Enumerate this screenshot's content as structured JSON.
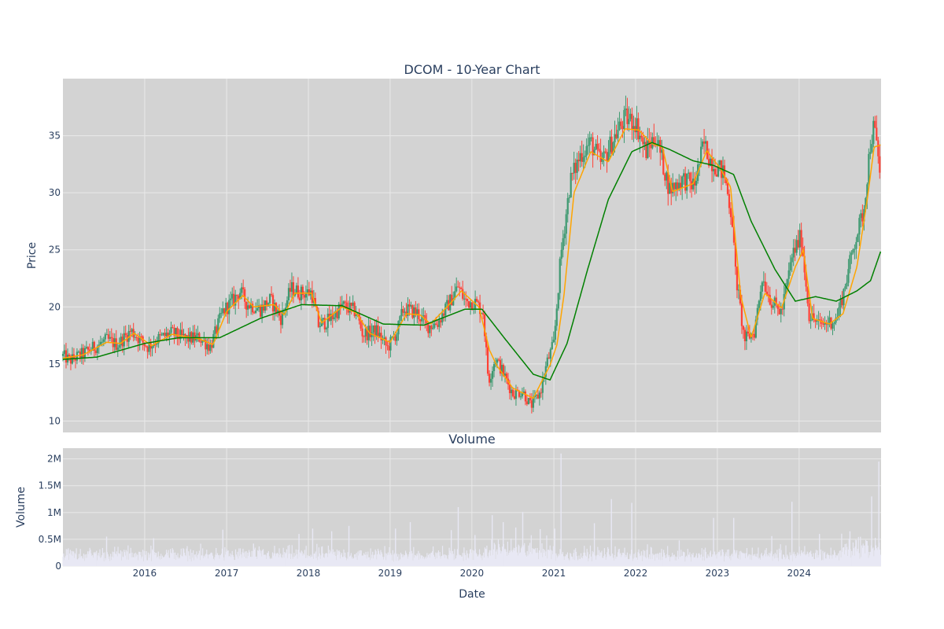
{
  "chart_data": [
    {
      "type": "candlestick",
      "title": "DCOM - 10-Year Chart",
      "ylabel": "Price",
      "ylim": [
        9,
        40
      ],
      "y_ticks": [
        "10",
        "15",
        "20",
        "25",
        "30",
        "35"
      ],
      "x_ticks": [
        "2016",
        "2017",
        "2018",
        "2019",
        "2020",
        "2021",
        "2022",
        "2023",
        "2024"
      ],
      "x_range": [
        "2015-01-01",
        "2025-01-01"
      ],
      "grid": true,
      "colors": {
        "increasing": "#3d9970",
        "decreasing": "#ff4136",
        "short_ma": "#ffa500",
        "long_ma": "#008000",
        "plot_bg": "#d3d3d3"
      },
      "price_path": [
        [
          "2015-01-01",
          15.7
        ],
        [
          "2015-02-01",
          15.3
        ],
        [
          "2015-04-01",
          15.9
        ],
        [
          "2015-06-01",
          16.6
        ],
        [
          "2015-07-15",
          17.1
        ],
        [
          "2015-09-01",
          16.7
        ],
        [
          "2015-11-01",
          17.9
        ],
        [
          "2016-01-15",
          16.5
        ],
        [
          "2016-03-01",
          17.2
        ],
        [
          "2016-05-01",
          17.7
        ],
        [
          "2016-07-01",
          17.2
        ],
        [
          "2016-09-01",
          17.3
        ],
        [
          "2016-10-20",
          16.5
        ],
        [
          "2016-12-15",
          19.6
        ],
        [
          "2017-02-01",
          20.6
        ],
        [
          "2017-03-01",
          21.4
        ],
        [
          "2017-04-01",
          20.3
        ],
        [
          "2017-06-01",
          19.8
        ],
        [
          "2017-07-15",
          20.6
        ],
        [
          "2017-09-01",
          19.0
        ],
        [
          "2017-10-15",
          21.6
        ],
        [
          "2017-12-01",
          21.2
        ],
        [
          "2018-01-15",
          21.3
        ],
        [
          "2018-02-15",
          18.4
        ],
        [
          "2018-04-01",
          18.8
        ],
        [
          "2018-06-01",
          20.1
        ],
        [
          "2018-08-01",
          19.6
        ],
        [
          "2018-09-01",
          17.6
        ],
        [
          "2018-11-01",
          17.9
        ],
        [
          "2018-12-20",
          16.4
        ],
        [
          "2019-02-01",
          17.8
        ],
        [
          "2019-03-01",
          19.8
        ],
        [
          "2019-05-01",
          19.5
        ],
        [
          "2019-06-15",
          18.3
        ],
        [
          "2019-08-01",
          18.6
        ],
        [
          "2019-09-15",
          20.1
        ],
        [
          "2019-11-01",
          21.8
        ],
        [
          "2019-12-01",
          20.5
        ],
        [
          "2020-01-15",
          20.4
        ],
        [
          "2020-02-20",
          19.6
        ],
        [
          "2020-03-15",
          13.5
        ],
        [
          "2020-04-15",
          15.5
        ],
        [
          "2020-05-20",
          14.2
        ],
        [
          "2020-07-01",
          12.4
        ],
        [
          "2020-08-15",
          12.6
        ],
        [
          "2020-09-20",
          11.3
        ],
        [
          "2020-11-01",
          12.5
        ],
        [
          "2020-12-01",
          15.1
        ],
        [
          "2021-01-01",
          16.8
        ],
        [
          "2021-02-01",
          24.5
        ],
        [
          "2021-03-15",
          31.0
        ],
        [
          "2021-05-01",
          33.4
        ],
        [
          "2021-06-15",
          34.4
        ],
        [
          "2021-08-01",
          32.5
        ],
        [
          "2021-10-01",
          35.0
        ],
        [
          "2021-11-15",
          36.5
        ],
        [
          "2022-01-01",
          36.2
        ],
        [
          "2022-02-15",
          33.6
        ],
        [
          "2022-04-01",
          35.0
        ],
        [
          "2022-06-01",
          30.3
        ],
        [
          "2022-08-01",
          31.2
        ],
        [
          "2022-09-20",
          30.6
        ],
        [
          "2022-11-01",
          34.3
        ],
        [
          "2022-12-01",
          32.9
        ],
        [
          "2023-02-01",
          31.6
        ],
        [
          "2023-03-10",
          27.5
        ],
        [
          "2023-03-20",
          23.5
        ],
        [
          "2023-05-01",
          17.1
        ],
        [
          "2023-06-15",
          17.8
        ],
        [
          "2023-07-20",
          22.6
        ],
        [
          "2023-09-01",
          20.4
        ],
        [
          "2023-10-15",
          19.5
        ],
        [
          "2023-12-01",
          24.5
        ],
        [
          "2024-01-10",
          26.2
        ],
        [
          "2024-02-15",
          19.3
        ],
        [
          "2024-04-01",
          18.4
        ],
        [
          "2024-06-15",
          18.9
        ],
        [
          "2024-07-20",
          21.5
        ],
        [
          "2024-09-01",
          25.4
        ],
        [
          "2024-10-15",
          28.4
        ],
        [
          "2024-11-15",
          34.5
        ],
        [
          "2024-12-01",
          35.8
        ],
        [
          "2024-12-31",
          31.2
        ]
      ],
      "short_ma": [
        [
          "2015-01-01",
          15.5
        ],
        [
          "2015-04-01",
          15.8
        ],
        [
          "2015-07-15",
          16.9
        ],
        [
          "2015-09-15",
          16.8
        ],
        [
          "2015-11-15",
          17.7
        ],
        [
          "2016-02-01",
          16.6
        ],
        [
          "2016-05-01",
          17.6
        ],
        [
          "2016-09-01",
          17.2
        ],
        [
          "2016-11-01",
          16.7
        ],
        [
          "2017-01-01",
          19.6
        ],
        [
          "2017-03-15",
          21.0
        ],
        [
          "2017-05-01",
          20.0
        ],
        [
          "2017-08-01",
          20.2
        ],
        [
          "2017-09-15",
          19.3
        ],
        [
          "2017-11-01",
          21.2
        ],
        [
          "2018-01-15",
          21.2
        ],
        [
          "2018-03-01",
          18.6
        ],
        [
          "2018-06-01",
          20.0
        ],
        [
          "2018-08-01",
          19.5
        ],
        [
          "2018-10-01",
          17.7
        ],
        [
          "2019-01-01",
          16.9
        ],
        [
          "2019-03-15",
          19.4
        ],
        [
          "2019-05-15",
          19.3
        ],
        [
          "2019-07-01",
          18.5
        ],
        [
          "2019-10-01",
          20.4
        ],
        [
          "2019-11-15",
          21.4
        ],
        [
          "2020-02-01",
          20.0
        ],
        [
          "2020-03-20",
          16.2
        ],
        [
          "2020-04-20",
          14.9
        ],
        [
          "2020-07-01",
          12.9
        ],
        [
          "2020-10-01",
          12.0
        ],
        [
          "2020-12-15",
          14.9
        ],
        [
          "2021-01-15",
          16.7
        ],
        [
          "2021-02-15",
          21.0
        ],
        [
          "2021-04-01",
          30.0
        ],
        [
          "2021-06-15",
          33.6
        ],
        [
          "2021-09-01",
          32.7
        ],
        [
          "2021-11-15",
          35.6
        ],
        [
          "2022-01-15",
          35.5
        ],
        [
          "2022-03-15",
          34.3
        ],
        [
          "2022-05-01",
          34.0
        ],
        [
          "2022-06-15",
          30.1
        ],
        [
          "2022-09-15",
          30.8
        ],
        [
          "2022-11-15",
          33.7
        ],
        [
          "2023-01-15",
          32.1
        ],
        [
          "2023-03-01",
          30.5
        ],
        [
          "2023-04-15",
          21.0
        ],
        [
          "2023-06-01",
          17.3
        ],
        [
          "2023-08-01",
          21.2
        ],
        [
          "2023-10-15",
          19.9
        ],
        [
          "2023-12-15",
          23.5
        ],
        [
          "2024-01-20",
          25.0
        ],
        [
          "2024-03-01",
          19.0
        ],
        [
          "2024-05-15",
          18.5
        ],
        [
          "2024-07-15",
          19.4
        ],
        [
          "2024-09-15",
          23.5
        ],
        [
          "2024-11-01",
          29.5
        ],
        [
          "2024-12-01",
          34.0
        ],
        [
          "2024-12-31",
          34.2
        ]
      ],
      "long_ma": [
        [
          "2015-01-01",
          15.4
        ],
        [
          "2015-06-01",
          15.6
        ],
        [
          "2016-01-01",
          16.8
        ],
        [
          "2016-06-01",
          17.3
        ],
        [
          "2016-12-01",
          17.3
        ],
        [
          "2017-06-01",
          19.0
        ],
        [
          "2017-12-01",
          20.2
        ],
        [
          "2018-06-01",
          20.1
        ],
        [
          "2018-12-01",
          18.5
        ],
        [
          "2019-06-01",
          18.4
        ],
        [
          "2019-12-01",
          19.8
        ],
        [
          "2020-02-15",
          19.8
        ],
        [
          "2020-06-01",
          17.1
        ],
        [
          "2020-10-01",
          14.1
        ],
        [
          "2020-12-15",
          13.6
        ],
        [
          "2021-03-01",
          16.8
        ],
        [
          "2021-06-01",
          23.3
        ],
        [
          "2021-09-01",
          29.4
        ],
        [
          "2021-12-15",
          33.6
        ],
        [
          "2022-03-15",
          34.4
        ],
        [
          "2022-06-01",
          33.8
        ],
        [
          "2022-09-15",
          32.8
        ],
        [
          "2022-12-15",
          32.4
        ],
        [
          "2023-03-15",
          31.6
        ],
        [
          "2023-06-01",
          27.5
        ],
        [
          "2023-09-15",
          23.3
        ],
        [
          "2023-12-15",
          20.5
        ],
        [
          "2024-03-15",
          20.9
        ],
        [
          "2024-06-15",
          20.5
        ],
        [
          "2024-09-15",
          21.4
        ],
        [
          "2024-11-15",
          22.3
        ],
        [
          "2024-12-31",
          24.9
        ]
      ]
    },
    {
      "type": "bar",
      "title": "Volume",
      "xlabel": "Date",
      "ylabel": "Volume",
      "ylim": [
        0,
        2200000
      ],
      "y_ticks": [
        "0",
        "0.5M",
        "1M",
        "1.5M",
        "2M"
      ],
      "x_ticks": [
        "2016",
        "2017",
        "2018",
        "2019",
        "2020",
        "2021",
        "2022",
        "2023",
        "2024"
      ],
      "grid": true,
      "colors": {
        "bar": "#e8e8f4",
        "plot_bg": "#d3d3d3"
      },
      "volume_spikes": [
        [
          "2015-07-15",
          550000
        ],
        [
          "2016-02-10",
          520000
        ],
        [
          "2016-12-15",
          680000
        ],
        [
          "2017-05-01",
          420000
        ],
        [
          "2017-11-20",
          600000
        ],
        [
          "2018-01-20",
          700000
        ],
        [
          "2018-04-15",
          650000
        ],
        [
          "2018-07-01",
          750000
        ],
        [
          "2019-01-25",
          700000
        ],
        [
          "2019-04-01",
          820000
        ],
        [
          "2019-10-01",
          670000
        ],
        [
          "2019-11-01",
          1100000
        ],
        [
          "2020-01-15",
          580000
        ],
        [
          "2020-04-01",
          950000
        ],
        [
          "2020-05-20",
          820000
        ],
        [
          "2020-07-15",
          720000
        ],
        [
          "2020-08-15",
          1010000
        ],
        [
          "2020-11-01",
          690000
        ],
        [
          "2021-01-05",
          700000
        ],
        [
          "2021-02-02",
          2100000
        ],
        [
          "2021-07-01",
          800000
        ],
        [
          "2021-09-15",
          1250000
        ],
        [
          "2021-12-15",
          1180000
        ],
        [
          "2022-07-15",
          480000
        ],
        [
          "2022-12-15",
          900000
        ],
        [
          "2023-03-15",
          900000
        ],
        [
          "2023-09-01",
          560000
        ],
        [
          "2023-11-30",
          1200000
        ],
        [
          "2024-04-01",
          600000
        ],
        [
          "2024-08-15",
          650000
        ],
        [
          "2024-11-20",
          1300000
        ],
        [
          "2024-12-22",
          1950000
        ]
      ]
    }
  ]
}
